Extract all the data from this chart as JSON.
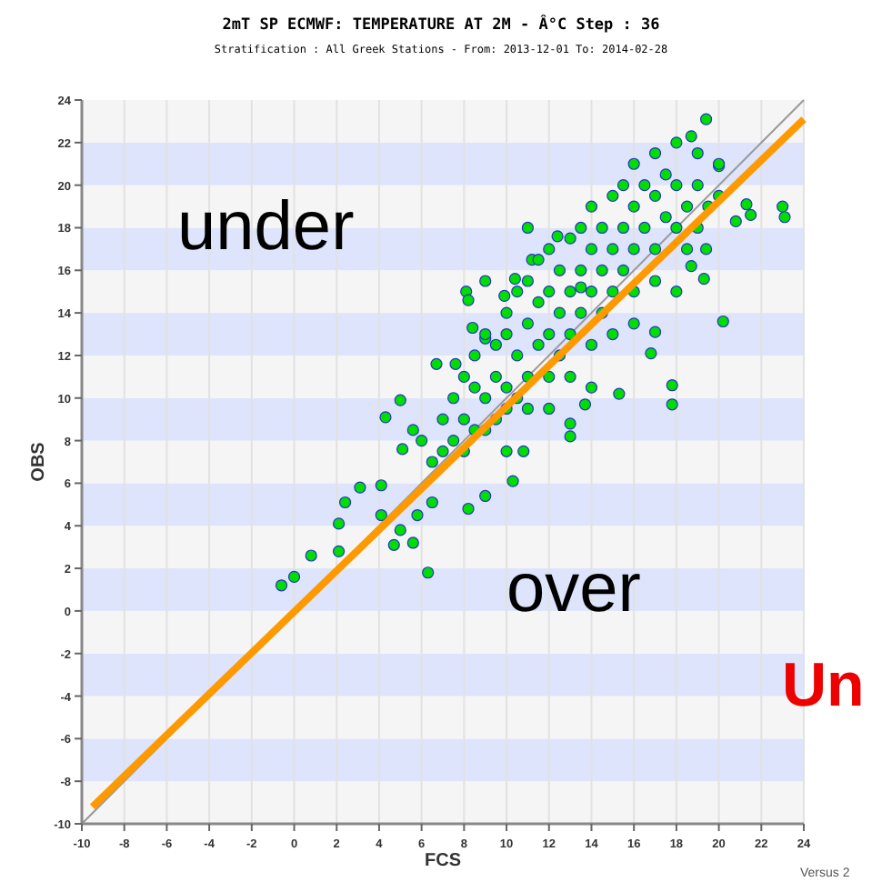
{
  "chart_data": {
    "type": "scatter",
    "title": "2mT SP ECMWF: TEMPERATURE AT 2M  - Â°C Step : 36",
    "subtitle": "Stratification : All Greek Stations - From: 2013-12-01 To: 2014-02-28",
    "xlabel": "FCS",
    "ylabel": "OBS",
    "xlim": [
      -10,
      24
    ],
    "ylim": [
      -10,
      24
    ],
    "xticks": [
      -10,
      -8,
      -6,
      -4,
      -2,
      0,
      2,
      4,
      6,
      8,
      10,
      12,
      14,
      16,
      18,
      20,
      22,
      24
    ],
    "yticks": [
      -10,
      -8,
      -6,
      -4,
      -2,
      0,
      2,
      4,
      6,
      8,
      10,
      12,
      14,
      16,
      18,
      20,
      22,
      24
    ],
    "grid": true,
    "annotations": [
      "under",
      "over",
      "Un",
      "Versus 2"
    ],
    "series": [
      {
        "type": "line",
        "marker": "none",
        "color": "#999999",
        "x": [
          -10,
          24
        ],
        "values": [
          -10,
          24
        ]
      },
      {
        "marker": "circle",
        "color": "#00dd00",
        "x": [
          -0.6,
          0,
          0.8,
          2.1,
          2.1,
          2.4,
          3.1,
          4.1,
          4.1,
          4.7,
          5.6,
          6.3,
          5,
          5.8,
          6.5,
          4.3,
          5,
          5.1,
          5.6,
          6.7,
          7.6,
          8.1,
          8.2,
          8.4,
          9,
          8.2,
          9,
          10.3,
          10.8,
          10.4,
          11.2,
          12.4,
          13,
          13,
          13.7,
          15.3,
          17,
          16.8,
          17.8,
          17.8,
          20.2,
          19.3,
          18.7,
          19.4,
          20.8,
          19.4,
          18.7,
          20,
          21.3,
          21.5,
          23,
          23.1,
          9.9,
          13.5,
          6,
          6.5,
          7,
          7,
          7.5,
          7.5,
          8,
          8,
          8,
          8.5,
          8.5,
          8.5,
          9,
          9,
          9,
          9.5,
          9.5,
          9.5,
          10,
          10,
          10,
          10,
          10.5,
          10.5,
          10.5,
          11,
          11,
          11,
          11,
          11.5,
          11.5,
          11.5,
          12,
          12,
          12,
          12,
          12.5,
          12.5,
          12.5,
          13,
          13,
          13,
          13,
          13.5,
          13.5,
          13.5,
          14,
          14,
          14,
          14,
          14.5,
          14.5,
          14.5,
          15,
          15,
          15,
          15,
          15.5,
          15.5,
          15.5,
          16,
          16,
          16,
          16,
          16.5,
          16.5,
          17,
          17,
          17,
          17,
          17.5,
          17.5,
          18,
          18,
          18,
          18.5,
          18.5,
          19,
          19,
          19,
          19.5,
          20,
          20,
          14,
          16,
          18,
          12,
          10,
          11,
          9
        ],
        "values": [
          1.2,
          1.6,
          2.6,
          2.8,
          4.1,
          5.1,
          5.8,
          5.9,
          4.5,
          3.1,
          3.2,
          1.8,
          3.8,
          4.5,
          5.1,
          9.1,
          9.9,
          7.6,
          8.5,
          11.6,
          11.6,
          15,
          14.6,
          13.3,
          12.8,
          4.8,
          5.4,
          6.1,
          7.5,
          15.6,
          16.5,
          17.6,
          8.2,
          8.8,
          9.7,
          10.2,
          13.1,
          12.1,
          10.6,
          9.7,
          13.6,
          15.6,
          16.2,
          17,
          18.3,
          23.1,
          22.3,
          20.9,
          19.1,
          18.6,
          19,
          18.5,
          14.8,
          15.2,
          8,
          7,
          9,
          7.5,
          10,
          8,
          9,
          11,
          7.5,
          10.5,
          12,
          8.5,
          10,
          13,
          8.5,
          11,
          12.5,
          9,
          10.5,
          13,
          14,
          9.5,
          12,
          15,
          10,
          13.5,
          11,
          15.5,
          9.5,
          12.5,
          14.5,
          16.5,
          13,
          15,
          11,
          17,
          14,
          16,
          12,
          15,
          17.5,
          13,
          11,
          16,
          14,
          18,
          15,
          17,
          12.5,
          19,
          16,
          18,
          14,
          17,
          19.5,
          15,
          13,
          18,
          16,
          20,
          17,
          19,
          15,
          21,
          18,
          20,
          17,
          19.5,
          21.5,
          15.5,
          18.5,
          20.5,
          18,
          20,
          22,
          19,
          17,
          20,
          21.5,
          18,
          19,
          19.5,
          21,
          10.5,
          13.5,
          15,
          9.5,
          7.5,
          18,
          15.5
        ]
      },
      {
        "type": "line",
        "marker": "none",
        "color": "#ff9900",
        "x": [
          -9.5,
          24
        ],
        "values": [
          -9.2,
          23.1
        ]
      }
    ]
  }
}
